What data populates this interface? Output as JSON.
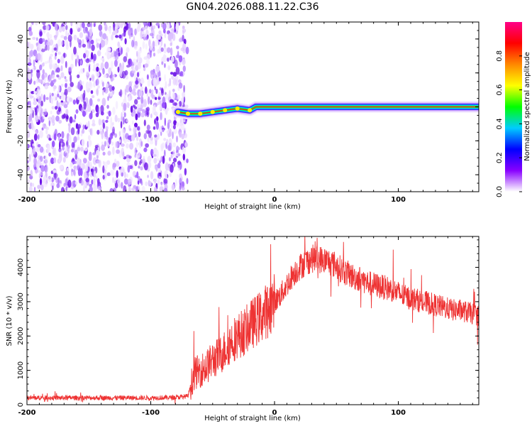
{
  "figure_title": "GN04.2026.088.11.22.C36",
  "chart_data": [
    {
      "type": "heatmap",
      "name": "spectrogram",
      "xlabel": "Height of straight line (km)",
      "ylabel": "Frequency (Hz)",
      "xlim": [
        -200,
        165
      ],
      "ylim": [
        -50,
        50
      ],
      "xticks": [
        -200,
        -100,
        0,
        100
      ],
      "xtick_labels": [
        "-200",
        "-100",
        "0",
        "100"
      ],
      "yticks": [
        -40,
        -20,
        0,
        20,
        40
      ],
      "ytick_labels": [
        "-40",
        "-20",
        "0",
        "20",
        "40"
      ],
      "noise_region_x": [
        -200,
        -75
      ],
      "tone_onset_x": -78,
      "tone_track": [
        {
          "x": -78,
          "f": -3
        },
        {
          "x": -70,
          "f": -4
        },
        {
          "x": -60,
          "f": -4
        },
        {
          "x": -50,
          "f": -3
        },
        {
          "x": -40,
          "f": -2
        },
        {
          "x": -30,
          "f": -1
        },
        {
          "x": -20,
          "f": -2
        },
        {
          "x": -15,
          "f": 0
        },
        {
          "x": 0,
          "f": 0
        },
        {
          "x": 100,
          "f": 0
        },
        {
          "x": 165,
          "f": 0
        }
      ],
      "colorbar": {
        "label": "Normalized spectral amplitude",
        "range": [
          0,
          1
        ],
        "ticks": [
          0.0,
          0.2,
          0.4,
          0.6,
          0.8
        ],
        "tick_labels": [
          "0.0",
          "0.2",
          "0.4",
          "0.6",
          "0.8"
        ],
        "stops": [
          "#ffffff",
          "#8800ff",
          "#0000ff",
          "#00ccff",
          "#00ff00",
          "#ffff00",
          "#ff8800",
          "#ff0000",
          "#ff0088"
        ]
      }
    },
    {
      "type": "line",
      "name": "snr",
      "xlabel": "Height of straight line (km)",
      "ylabel": "SNR (10 * v/v)",
      "xlim": [
        -200,
        165
      ],
      "ylim": [
        0,
        4900
      ],
      "xticks": [
        -200,
        -100,
        0,
        100
      ],
      "xtick_labels": [
        "-200",
        "-100",
        "0",
        "100"
      ],
      "yticks": [
        0,
        1000,
        2000,
        3000,
        4000
      ],
      "ytick_labels": [
        "0",
        "1000",
        "2000",
        "3000",
        "4000"
      ],
      "series": [
        {
          "name": "SNR",
          "color": "#ee3333",
          "x": [
            -200,
            -180,
            -160,
            -140,
            -120,
            -100,
            -80,
            -70,
            -65,
            -60,
            -55,
            -50,
            -45,
            -40,
            -35,
            -30,
            -25,
            -20,
            -15,
            -10,
            -5,
            0,
            5,
            10,
            15,
            20,
            25,
            30,
            35,
            40,
            45,
            50,
            55,
            60,
            65,
            70,
            75,
            80,
            85,
            90,
            95,
            100,
            105,
            110,
            115,
            120,
            125,
            130,
            135,
            140,
            145,
            150,
            155,
            160,
            165
          ],
          "y": [
            200,
            200,
            200,
            200,
            200,
            200,
            210,
            250,
            900,
            1000,
            1100,
            1300,
            1400,
            1600,
            1850,
            2000,
            2100,
            2300,
            2450,
            2600,
            2800,
            3000,
            3200,
            3500,
            3800,
            4000,
            4150,
            4250,
            4250,
            4200,
            4150,
            4050,
            3900,
            3800,
            3700,
            3650,
            3550,
            3500,
            3450,
            3400,
            3350,
            3250,
            3150,
            3100,
            3050,
            3000,
            2950,
            2900,
            2850,
            2800,
            2750,
            2750,
            2700,
            2650,
            2600
          ]
        }
      ]
    }
  ]
}
